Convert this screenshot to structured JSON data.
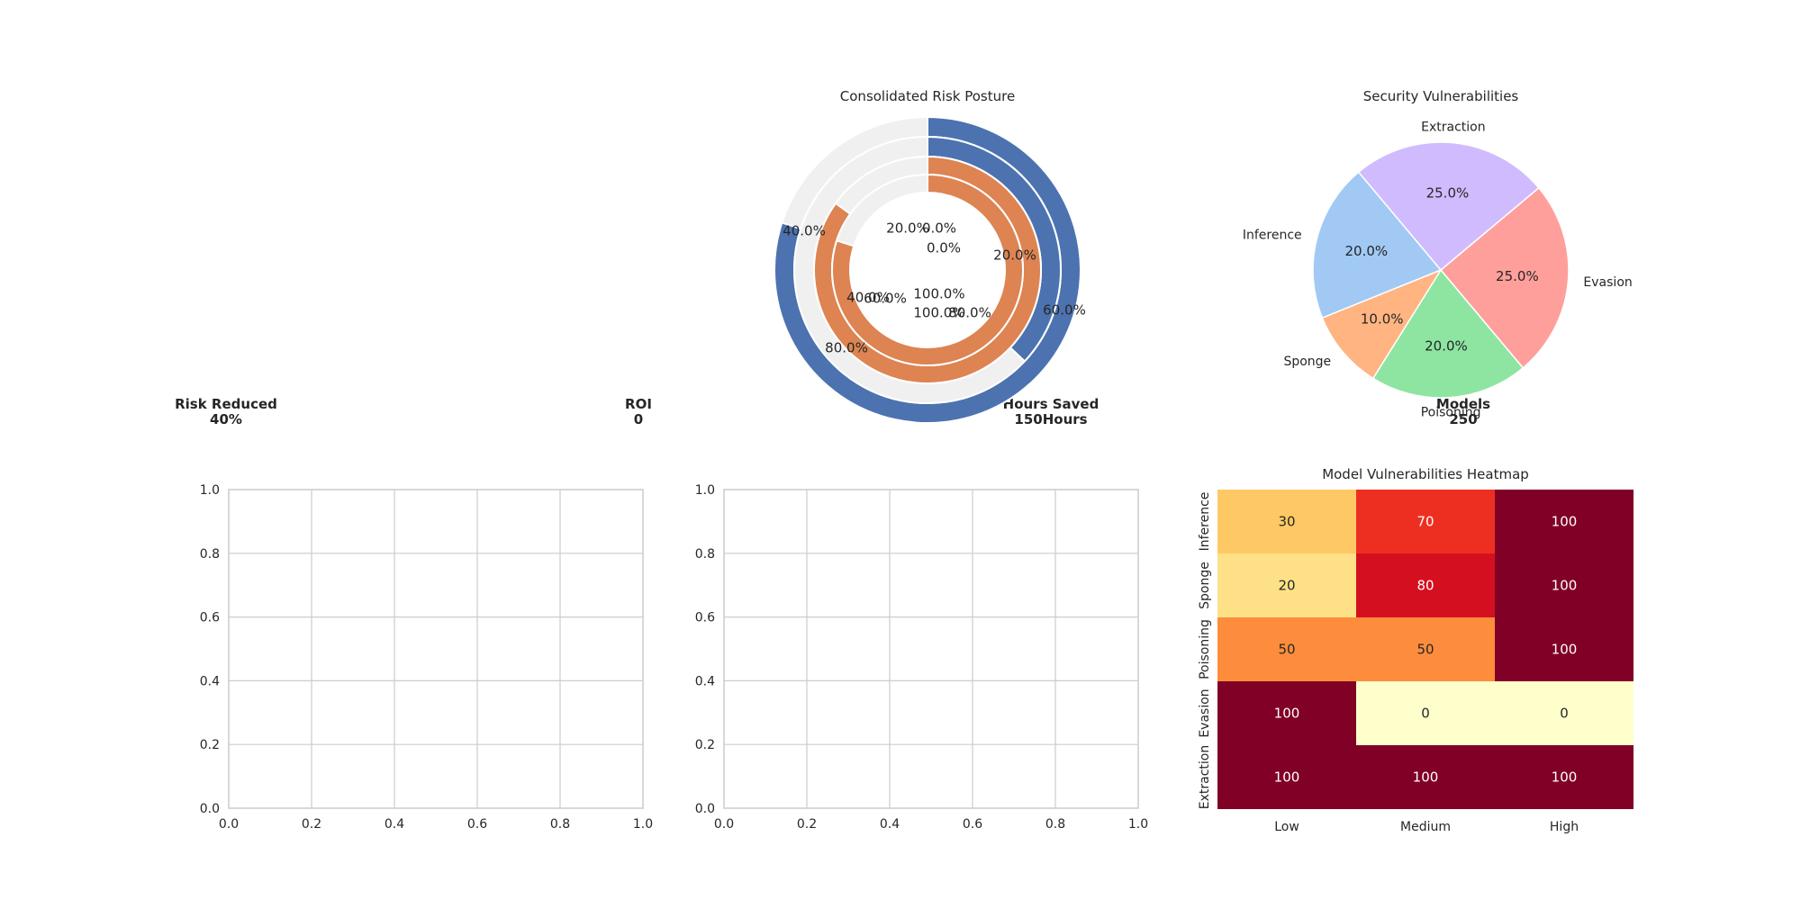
{
  "kpis": [
    {
      "label": "Risk Reduced",
      "value": "40%"
    },
    {
      "label": "ROI",
      "value": "0"
    },
    {
      "label": "Hours Saved",
      "value": "150Hours"
    },
    {
      "label": "Models",
      "value": "250"
    }
  ],
  "chart_data": [
    {
      "type": "radial-bar",
      "title": "Consolidated Risk Posture",
      "series": [
        {
          "ring": 1,
          "fill_fraction": 0.8,
          "color": "#4c72b0"
        },
        {
          "ring": 2,
          "fill_fraction": 0.37,
          "color": "#4c72b0"
        },
        {
          "ring": 3,
          "fill_fraction": 0.85,
          "color": "#dd8452"
        },
        {
          "ring": 4,
          "fill_fraction": 0.8,
          "color": "#dd8452"
        }
      ],
      "track_color": "#f0f0f0",
      "tick_labels": [
        "40.0%",
        "20.0%",
        "0.0%",
        "0.0%",
        "20.0%",
        "40.0%",
        "60.0%",
        "60.0%",
        "80.0%",
        "100.0%",
        "100.0%",
        "80.0%"
      ]
    },
    {
      "type": "pie",
      "title": "Security Vulnerabilities",
      "categories": [
        "Evasion",
        "Poisoning",
        "Sponge",
        "Inference",
        "Extraction"
      ],
      "values": [
        25,
        20,
        10,
        20,
        25
      ],
      "value_labels": [
        "25.0%",
        "20.0%",
        "10.0%",
        "20.0%",
        "25.0%"
      ],
      "colors": [
        "#ff9f9b",
        "#8de5a1",
        "#ffb482",
        "#a1c9f4",
        "#d0bbff"
      ]
    },
    {
      "type": "line",
      "title": "",
      "x": [],
      "series": [],
      "xlim": [
        0.0,
        1.0
      ],
      "ylim": [
        0.0,
        1.0
      ],
      "xticks": [
        "0.0",
        "0.2",
        "0.4",
        "0.6",
        "0.8",
        "1.0"
      ],
      "yticks": [
        "0.0",
        "0.2",
        "0.4",
        "0.6",
        "0.8",
        "1.0"
      ],
      "grid": true
    },
    {
      "type": "line",
      "title": "",
      "x": [],
      "series": [],
      "xlim": [
        0.0,
        1.0
      ],
      "ylim": [
        0.0,
        1.0
      ],
      "xticks": [
        "0.0",
        "0.2",
        "0.4",
        "0.6",
        "0.8",
        "1.0"
      ],
      "yticks": [
        "0.0",
        "0.2",
        "0.4",
        "0.6",
        "0.8",
        "1.0"
      ],
      "grid": true
    },
    {
      "type": "heatmap",
      "title": "Model Vulnerabilities Heatmap",
      "rows": [
        "Inference",
        "Sponge",
        "Poisoning",
        "Evasion",
        "Extraction"
      ],
      "columns": [
        "Low",
        "Medium",
        "High"
      ],
      "values": [
        [
          30,
          70,
          100
        ],
        [
          20,
          80,
          100
        ],
        [
          50,
          50,
          100
        ],
        [
          100,
          0,
          0
        ],
        [
          100,
          100,
          100
        ]
      ],
      "colormap": "YlOrRd",
      "vmin": 0,
      "vmax": 100
    }
  ]
}
